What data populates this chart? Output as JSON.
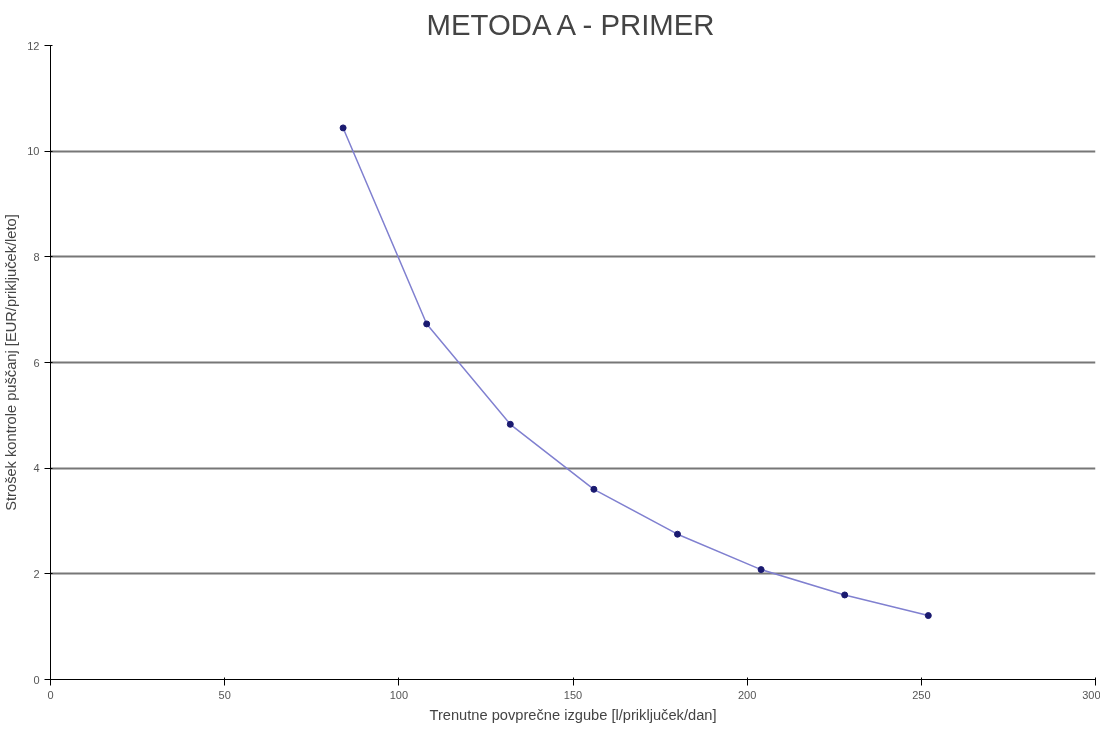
{
  "chart_data": {
    "type": "line",
    "title": "METODA A - PRIMER",
    "xlabel": "Trenutne povprečne izgube [l/priključek/dan]",
    "ylabel": "Strošek kontrole puščanj [EUR/priključek/leto]",
    "x": [
      84,
      108,
      132,
      156,
      180,
      204,
      228,
      252
    ],
    "series": [
      {
        "color": "#8080d0",
        "values": [
          10.44,
          6.73,
          4.83,
          3.6,
          2.75,
          2.08,
          1.6,
          1.21
        ]
      }
    ],
    "xlim": [
      0,
      300
    ],
    "xticks": [
      0,
      50,
      100,
      150,
      200,
      250,
      300
    ],
    "ylim": [
      0,
      12
    ],
    "yticks": [
      0,
      2,
      4,
      6,
      8,
      10,
      12
    ],
    "grid": "y",
    "marker": "circle",
    "line_style": "solid"
  }
}
